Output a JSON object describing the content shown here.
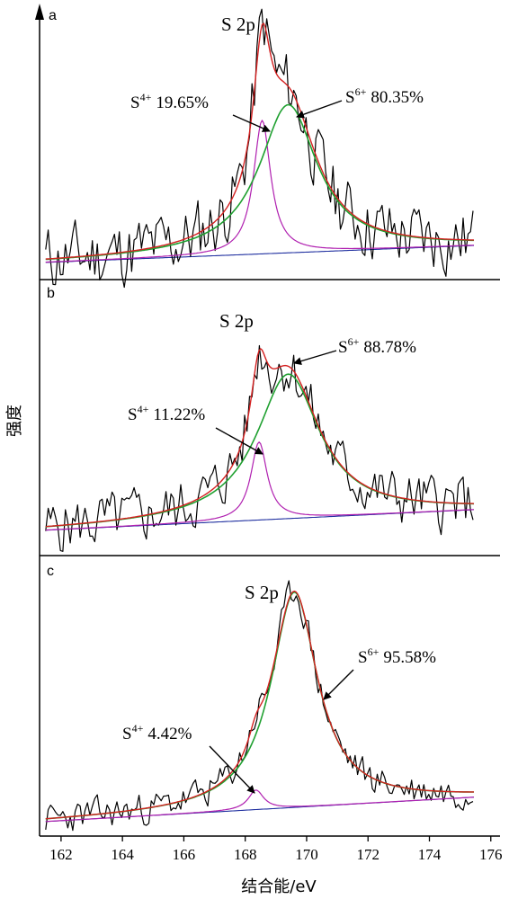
{
  "chart_data": {
    "type": "line",
    "xlabel": "结合能/eV",
    "ylabel": "强度",
    "xlim": [
      161.3,
      176.3
    ],
    "xticks": [
      162,
      164,
      166,
      168,
      170,
      172,
      174,
      176
    ],
    "colors": {
      "raw": "#000000",
      "envelope": "#d42020",
      "s6": "#1fa030",
      "s4": "#b020b0",
      "baseline": "#2030a0"
    },
    "panels": [
      {
        "label": "a",
        "title": "S 2p",
        "seed": 11,
        "noise": 0.13,
        "baseline": [
          0.03,
          0.1
        ],
        "s4": {
          "center": 168.55,
          "height": 0.55,
          "width": 0.34,
          "label": "S",
          "sup": "4+",
          "pct": "19.65%"
        },
        "s6": {
          "center": 169.4,
          "height": 0.61,
          "width": 1.15,
          "label": "S",
          "sup": "6+",
          "pct": "80.35%"
        }
      },
      {
        "label": "b",
        "title": "S 2p",
        "seed": 5,
        "noise": 0.11,
        "baseline": [
          0.04,
          0.13
        ],
        "s4": {
          "center": 168.45,
          "height": 0.34,
          "width": 0.32,
          "label": "S",
          "sup": "4+",
          "pct": "11.22%"
        },
        "s6": {
          "center": 169.4,
          "height": 0.63,
          "width": 1.25,
          "label": "S",
          "sup": "6+",
          "pct": "88.78%"
        }
      },
      {
        "label": "c",
        "title": "S 2p",
        "seed": 23,
        "noise": 0.06,
        "baseline": [
          0.03,
          0.13
        ],
        "s4": {
          "center": 168.35,
          "height": 0.08,
          "width": 0.3,
          "label": "S",
          "sup": "4+",
          "pct": "4.42%"
        },
        "s6": {
          "center": 169.6,
          "height": 0.88,
          "width": 0.92,
          "label": "S",
          "sup": "6+",
          "pct": "95.58%"
        }
      }
    ]
  }
}
